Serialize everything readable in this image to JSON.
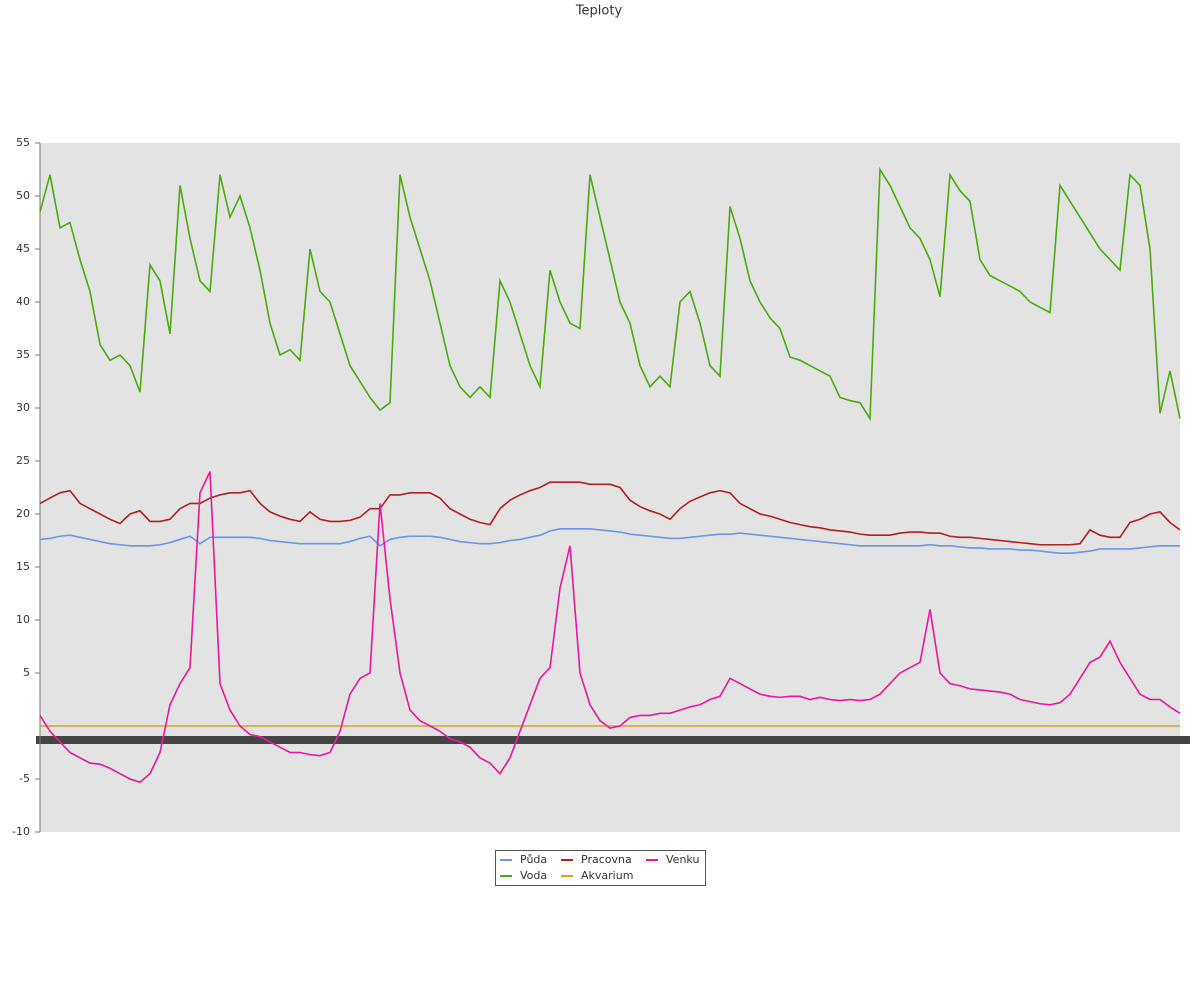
{
  "chart_data": {
    "type": "line",
    "title": "Teploty",
    "ylim": [
      -10,
      55
    ],
    "yticks": [
      -10,
      -5,
      5,
      10,
      15,
      20,
      25,
      30,
      35,
      40,
      45,
      50,
      55
    ],
    "series": [
      {
        "name": "Půda",
        "color": "#6a96e8",
        "values": [
          17.6,
          17.7,
          17.9,
          18,
          17.8,
          17.6,
          17.4,
          17.2,
          17.1,
          17,
          17,
          17,
          17.1,
          17.3,
          17.6,
          17.9,
          17.2,
          17.8,
          17.8,
          17.8,
          17.8,
          17.8,
          17.7,
          17.5,
          17.4,
          17.3,
          17.2,
          17.2,
          17.2,
          17.2,
          17.2,
          17.4,
          17.7,
          17.9,
          17,
          17.6,
          17.8,
          17.9,
          17.9,
          17.9,
          17.8,
          17.6,
          17.4,
          17.3,
          17.2,
          17.2,
          17.3,
          17.5,
          17.6,
          17.8,
          18,
          18.4,
          18.6,
          18.6,
          18.6,
          18.6,
          18.5,
          18.4,
          18.3,
          18.1,
          18,
          17.9,
          17.8,
          17.7,
          17.7,
          17.8,
          17.9,
          18,
          18.1,
          18.1,
          18.2,
          18.1,
          18,
          17.9,
          17.8,
          17.7,
          17.6,
          17.5,
          17.4,
          17.3,
          17.2,
          17.1,
          17,
          17,
          17,
          17,
          17,
          17,
          17,
          17.1,
          17,
          17,
          16.9,
          16.8,
          16.8,
          16.7,
          16.7,
          16.7,
          16.6,
          16.6,
          16.5,
          16.4,
          16.3,
          16.3,
          16.4,
          16.5,
          16.7,
          16.7,
          16.7,
          16.7,
          16.8,
          16.9,
          17,
          17,
          17
        ]
      },
      {
        "name": "Voda",
        "color": "#4aab0c",
        "values": [
          48.5,
          52,
          47,
          47.5,
          44,
          41,
          36,
          34.5,
          35,
          34,
          31.5,
          43.5,
          42,
          37,
          51,
          46,
          42,
          41,
          52,
          48,
          50,
          47,
          43,
          38,
          35,
          35.5,
          34.5,
          45,
          41,
          40,
          37,
          34,
          32.5,
          31,
          29.8,
          30.5,
          52,
          48,
          45,
          42,
          38,
          34,
          32,
          31,
          32,
          31,
          42,
          40,
          37,
          34,
          32,
          43,
          40,
          38,
          37.5,
          52,
          48,
          44,
          40,
          38,
          34,
          32,
          33,
          32,
          40,
          41,
          38,
          34,
          33,
          49,
          46,
          42,
          40,
          38.5,
          37.5,
          34.8,
          34.5,
          34,
          33.5,
          33,
          31,
          30.7,
          30.5,
          29,
          52.5,
          51,
          49,
          47,
          46,
          44,
          40.5,
          52,
          50.5,
          49.5,
          44,
          42.5,
          42,
          41.5,
          41,
          40,
          39.5,
          39,
          51,
          49.5,
          48,
          46.5,
          45,
          44,
          43,
          52,
          51,
          45,
          29.5,
          33.5,
          29
        ]
      },
      {
        "name": "Pracovna",
        "color": "#b0201e",
        "values": [
          21,
          21.5,
          22,
          22.2,
          21,
          20.5,
          20,
          19.5,
          19.1,
          20,
          20.3,
          19.3,
          19.3,
          19.5,
          20.5,
          21,
          21,
          21.5,
          21.8,
          22,
          22,
          22.2,
          21,
          20.2,
          19.8,
          19.5,
          19.3,
          20.2,
          19.5,
          19.3,
          19.3,
          19.4,
          19.7,
          20.5,
          20.5,
          21.8,
          21.8,
          22,
          22,
          22,
          21.5,
          20.5,
          20,
          19.5,
          19.2,
          19,
          20.5,
          21.3,
          21.8,
          22.2,
          22.5,
          23,
          23,
          23,
          23,
          22.8,
          22.8,
          22.8,
          22.5,
          21.3,
          20.7,
          20.3,
          20,
          19.5,
          20.5,
          21.2,
          21.6,
          22,
          22.2,
          22,
          21,
          20.5,
          20,
          19.8,
          19.5,
          19.2,
          19,
          18.8,
          18.7,
          18.5,
          18.4,
          18.3,
          18.1,
          18,
          18,
          18,
          18.2,
          18.3,
          18.3,
          18.2,
          18.2,
          17.9,
          17.8,
          17.8,
          17.7,
          17.6,
          17.5,
          17.4,
          17.3,
          17.2,
          17.1,
          17.1,
          17.1,
          17.1,
          17.2,
          18.5,
          18,
          17.8,
          17.8,
          19.2,
          19.5,
          20,
          20.2,
          19.2,
          18.5
        ]
      },
      {
        "name": "Akvarium",
        "color": "#e5a01a",
        "values": [
          0,
          0,
          0,
          0,
          0,
          0,
          0,
          0,
          0,
          0,
          0,
          0,
          0,
          0,
          0,
          0,
          0,
          0,
          0,
          0,
          0,
          0,
          0,
          0,
          0,
          0,
          0,
          0,
          0,
          0,
          0,
          0,
          0,
          0,
          0,
          0,
          0,
          0,
          0,
          0,
          0,
          0,
          0,
          0,
          0,
          0,
          0,
          0,
          0,
          0,
          0,
          0,
          0,
          0,
          0,
          0,
          0,
          0,
          0,
          0,
          0,
          0,
          0,
          0,
          0,
          0,
          0,
          0,
          0,
          0,
          0,
          0,
          0,
          0,
          0,
          0,
          0,
          0,
          0,
          0,
          0,
          0,
          0,
          0,
          0,
          0,
          0,
          0,
          0,
          0,
          0,
          0,
          0,
          0,
          0,
          0,
          0,
          0,
          0,
          0,
          0,
          0,
          0,
          0,
          0,
          0,
          0,
          0,
          0,
          0,
          0,
          0,
          0,
          0,
          0
        ]
      },
      {
        "name": "Venku",
        "color": "#e8189a",
        "values": [
          1,
          -0.5,
          -1.5,
          -2.5,
          -3,
          -3.5,
          -3.6,
          -4,
          -4.5,
          -5,
          -5.3,
          -4.5,
          -2.5,
          2,
          4,
          5.5,
          22,
          24,
          4,
          1.5,
          0,
          -0.8,
          -1,
          -1.5,
          -2,
          -2.5,
          -2.5,
          -2.7,
          -2.8,
          -2.5,
          -0.5,
          3,
          4.5,
          5,
          21,
          12,
          5,
          1.5,
          0.5,
          0,
          -0.5,
          -1.2,
          -1.5,
          -2,
          -3,
          -3.5,
          -4.5,
          -3,
          -0.5,
          2,
          4.5,
          5.5,
          13,
          17,
          5,
          2,
          0.5,
          -0.2,
          0,
          0.8,
          1,
          1,
          1.2,
          1.2,
          1.5,
          1.8,
          2,
          2.5,
          2.8,
          4.5,
          4,
          3.5,
          3,
          2.8,
          2.7,
          2.8,
          2.8,
          2.5,
          2.7,
          2.5,
          2.4,
          2.5,
          2.4,
          2.5,
          3,
          4,
          5,
          5.5,
          6,
          11,
          5,
          4,
          3.8,
          3.5,
          3.4,
          3.3,
          3.2,
          3,
          2.5,
          2.3,
          2.1,
          2,
          2.2,
          3,
          4.5,
          6,
          6.5,
          8,
          6,
          4.5,
          3,
          2.5,
          2.5,
          1.8,
          1.2
        ]
      }
    ]
  }
}
